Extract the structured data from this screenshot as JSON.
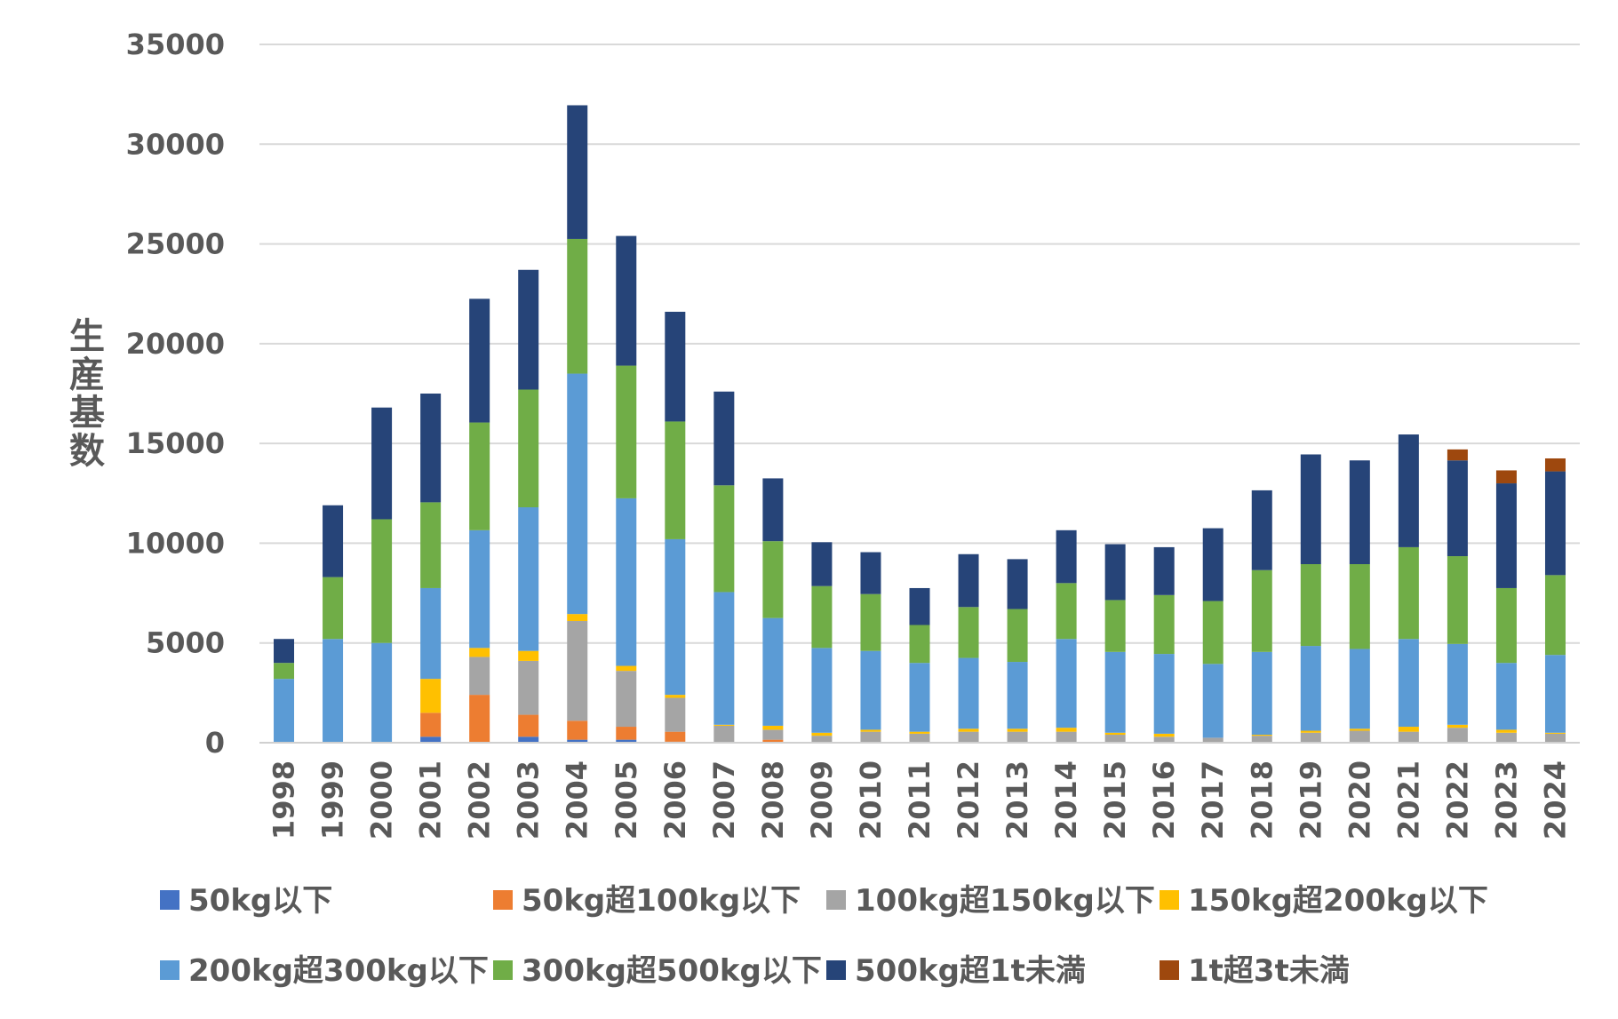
{
  "chart_data": {
    "type": "bar",
    "stacked": true,
    "title": "",
    "xlabel": "",
    "ylabel": "生産基数",
    "ylim": [
      0,
      35000
    ],
    "yticks": [
      0,
      5000,
      10000,
      15000,
      20000,
      25000,
      30000,
      35000
    ],
    "grid": true,
    "legend_position": "bottom",
    "categories": [
      "1998",
      "1999",
      "2000",
      "2001",
      "2002",
      "2003",
      "2004",
      "2005",
      "2006",
      "2007",
      "2008",
      "2009",
      "2010",
      "2011",
      "2012",
      "2013",
      "2014",
      "2015",
      "2016",
      "2017",
      "2018",
      "2019",
      "2020",
      "2021",
      "2022",
      "2023",
      "2024"
    ],
    "series": [
      {
        "name": "50kg以下",
        "color": "#4472C4",
        "values": [
          0,
          0,
          0,
          300,
          0,
          300,
          150,
          150,
          50,
          0,
          0,
          0,
          0,
          0,
          0,
          0,
          0,
          0,
          0,
          0,
          0,
          0,
          0,
          0,
          0,
          0,
          0
        ]
      },
      {
        "name": "50kg超100kg以下",
        "color": "#ED7D31",
        "values": [
          0,
          0,
          0,
          1200,
          2400,
          1100,
          950,
          650,
          500,
          0,
          150,
          0,
          0,
          0,
          0,
          0,
          0,
          0,
          0,
          0,
          0,
          0,
          0,
          0,
          0,
          0,
          0
        ]
      },
      {
        "name": "100kg超150kg以下",
        "color": "#A5A5A5",
        "values": [
          0,
          0,
          0,
          0,
          1900,
          2700,
          5000,
          2800,
          1700,
          850,
          500,
          350,
          550,
          450,
          550,
          550,
          550,
          400,
          300,
          250,
          350,
          500,
          600,
          550,
          750,
          500,
          450
        ]
      },
      {
        "name": "150kg超200kg以下",
        "color": "#FFC000",
        "values": [
          0,
          0,
          0,
          1700,
          450,
          500,
          350,
          250,
          150,
          50,
          200,
          150,
          100,
          100,
          150,
          150,
          200,
          100,
          150,
          0,
          50,
          100,
          100,
          250,
          150,
          150,
          50
        ]
      },
      {
        "name": "200kg超300kg以下",
        "color": "#5B9BD5",
        "values": [
          3200,
          5200,
          5000,
          4550,
          5900,
          7200,
          12050,
          8400,
          7800,
          6650,
          5400,
          4250,
          3950,
          3450,
          3550,
          3350,
          4450,
          4050,
          4000,
          3700,
          4150,
          4250,
          4000,
          4400,
          4050,
          3350,
          3900
        ]
      },
      {
        "name": "300kg超500kg以下",
        "color": "#70AD47",
        "values": [
          800,
          3100,
          6200,
          4300,
          5400,
          5900,
          6750,
          6650,
          5900,
          5350,
          3850,
          3100,
          2850,
          1900,
          2550,
          2650,
          2800,
          2600,
          2950,
          3150,
          4100,
          4100,
          4250,
          4600,
          4400,
          3750,
          4000
        ]
      },
      {
        "name": "500kg超1t未満",
        "color": "#264478",
        "values": [
          1200,
          3600,
          5600,
          5450,
          6200,
          6000,
          6700,
          6500,
          5500,
          4700,
          3150,
          2200,
          2100,
          1850,
          2650,
          2500,
          2650,
          2800,
          2400,
          3650,
          4000,
          5500,
          5200,
          5650,
          4800,
          5250,
          5200
        ]
      },
      {
        "name": "1t超3t未満",
        "color": "#9E480E",
        "values": [
          0,
          0,
          0,
          0,
          0,
          0,
          0,
          0,
          0,
          0,
          0,
          0,
          0,
          0,
          0,
          0,
          0,
          0,
          0,
          0,
          0,
          0,
          0,
          0,
          550,
          650,
          650
        ]
      }
    ]
  }
}
